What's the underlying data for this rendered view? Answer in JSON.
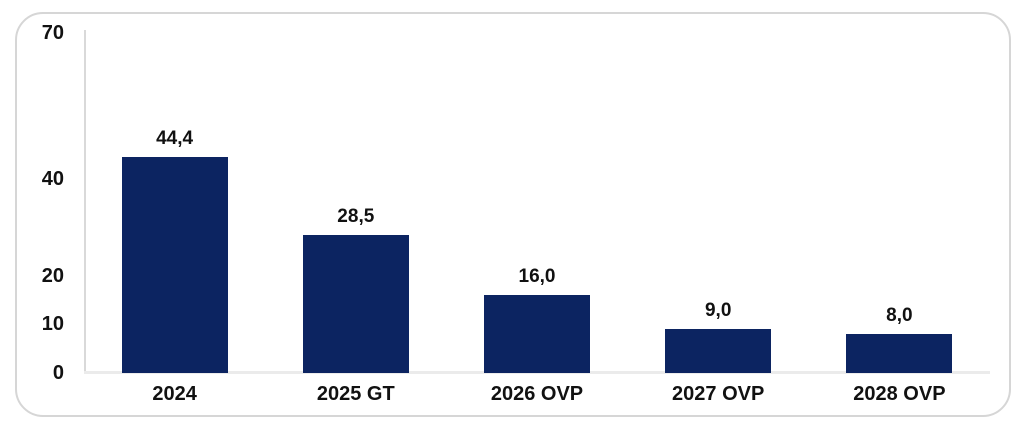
{
  "page": {
    "background_color": "#ffffff"
  },
  "panel": {
    "fill_color": "#ffffff",
    "border_color": "#d6d6d6"
  },
  "chart_data": {
    "type": "bar",
    "title": "",
    "xlabel": "",
    "ylabel": "",
    "categories": [
      "2024",
      "2025 GT",
      "2026 OVP",
      "2027 OVP",
      "2028 OVP"
    ],
    "values": [
      44.4,
      28.5,
      16.0,
      9.0,
      8.0
    ],
    "value_labels": [
      "44,4",
      "28,5",
      "16,0",
      "9,0",
      "8,0"
    ],
    "decimal_separator": ",",
    "ylim": [
      0,
      70
    ],
    "yticks": [
      0,
      10,
      20,
      40,
      70
    ],
    "ytick_labels": [
      "0",
      "10",
      "20",
      "40",
      "70"
    ],
    "grid": false,
    "legend": null,
    "bar_color": "#0c2461",
    "axis_line_color": "#d9d9d9",
    "baseline_color": "#ebebeb",
    "text_color": "#111111"
  }
}
